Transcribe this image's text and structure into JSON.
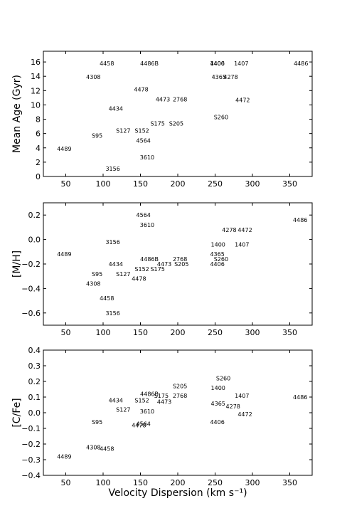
{
  "figure": {
    "xlabel": "Velocity Dispersion (km s⁻¹)"
  },
  "chart_data": [
    {
      "type": "scatter",
      "ylabel": "Mean Age (Gyr)",
      "xlim": [
        20,
        380
      ],
      "ylim": [
        0,
        17.5
      ],
      "xticks": [
        "50",
        "100",
        "150",
        "200",
        "250",
        "300",
        "350"
      ],
      "xtick_values": [
        50,
        100,
        150,
        200,
        250,
        300,
        350
      ],
      "yticks": [
        "0",
        "2",
        "4",
        "6",
        "8",
        "10",
        "12",
        "14",
        "16"
      ],
      "ytick_values": [
        0,
        2,
        4,
        6,
        8,
        10,
        12,
        14,
        16
      ],
      "points": [
        {
          "label": "4458",
          "x": 105,
          "y": 15.8
        },
        {
          "label": "4486B",
          "x": 162,
          "y": 15.8
        },
        {
          "label": "1400",
          "x": 253,
          "y": 15.8
        },
        {
          "label": "4406",
          "x": 253,
          "y": 15.8
        },
        {
          "label": "1407",
          "x": 285,
          "y": 15.8
        },
        {
          "label": "4486",
          "x": 365,
          "y": 15.8
        },
        {
          "label": "4308",
          "x": 87,
          "y": 13.9
        },
        {
          "label": "4365",
          "x": 255,
          "y": 13.9
        },
        {
          "label": "4278",
          "x": 271,
          "y": 13.9
        },
        {
          "label": "4478",
          "x": 151,
          "y": 12.2
        },
        {
          "label": "4473",
          "x": 180,
          "y": 10.8
        },
        {
          "label": "2768",
          "x": 203,
          "y": 10.8
        },
        {
          "label": "4472",
          "x": 287,
          "y": 10.7
        },
        {
          "label": "4434",
          "x": 117,
          "y": 9.5
        },
        {
          "label": "S260",
          "x": 258,
          "y": 8.3
        },
        {
          "label": "S175",
          "x": 173,
          "y": 7.4
        },
        {
          "label": "S205",
          "x": 198,
          "y": 7.4
        },
        {
          "label": "S127",
          "x": 127,
          "y": 6.4
        },
        {
          "label": "S152",
          "x": 152,
          "y": 6.4
        },
        {
          "label": "S95",
          "x": 92,
          "y": 5.7
        },
        {
          "label": "4564",
          "x": 154,
          "y": 5.0
        },
        {
          "label": "4489",
          "x": 48,
          "y": 3.9
        },
        {
          "label": "3610",
          "x": 159,
          "y": 2.7
        },
        {
          "label": "3156",
          "x": 113,
          "y": 1.1
        }
      ]
    },
    {
      "type": "scatter",
      "ylabel": "[M/H]",
      "xlim": [
        20,
        380
      ],
      "ylim": [
        -0.7,
        0.3
      ],
      "xticks": [
        "50",
        "100",
        "150",
        "200",
        "250",
        "300",
        "350"
      ],
      "xtick_values": [
        50,
        100,
        150,
        200,
        250,
        300,
        350
      ],
      "yticks": [
        "0.2",
        "0.0",
        "−0.2",
        "−0.4",
        "−0.6"
      ],
      "ytick_values": [
        0.2,
        0.0,
        -0.2,
        -0.4,
        -0.6
      ],
      "points": [
        {
          "label": "4564",
          "x": 154,
          "y": 0.2
        },
        {
          "label": "4486",
          "x": 364,
          "y": 0.16
        },
        {
          "label": "3610",
          "x": 159,
          "y": 0.12
        },
        {
          "label": "4278",
          "x": 269,
          "y": 0.08
        },
        {
          "label": "4472",
          "x": 290,
          "y": 0.08
        },
        {
          "label": "3156",
          "x": 113,
          "y": -0.02
        },
        {
          "label": "1400",
          "x": 254,
          "y": -0.04
        },
        {
          "label": "1407",
          "x": 286,
          "y": -0.04
        },
        {
          "label": "4489",
          "x": 48,
          "y": -0.12
        },
        {
          "label": "4365",
          "x": 253,
          "y": -0.12
        },
        {
          "label": "4486B",
          "x": 162,
          "y": -0.16
        },
        {
          "label": "2768",
          "x": 203,
          "y": -0.16
        },
        {
          "label": "S260",
          "x": 258,
          "y": -0.16
        },
        {
          "label": "4434",
          "x": 117,
          "y": -0.2
        },
        {
          "label": "4473",
          "x": 182,
          "y": -0.2
        },
        {
          "label": "S205",
          "x": 205,
          "y": -0.2
        },
        {
          "label": "4406",
          "x": 253,
          "y": -0.2
        },
        {
          "label": "S152",
          "x": 152,
          "y": -0.24
        },
        {
          "label": "S175",
          "x": 173,
          "y": -0.24
        },
        {
          "label": "S95",
          "x": 92,
          "y": -0.28
        },
        {
          "label": "S127",
          "x": 127,
          "y": -0.28
        },
        {
          "label": "4478",
          "x": 148,
          "y": -0.32
        },
        {
          "label": "4308",
          "x": 87,
          "y": -0.36
        },
        {
          "label": "4458",
          "x": 105,
          "y": -0.48
        },
        {
          "label": "3156",
          "x": 113,
          "y": -0.6
        }
      ]
    },
    {
      "type": "scatter",
      "ylabel": "[C/Fe]",
      "xlim": [
        20,
        380
      ],
      "ylim": [
        -0.4,
        0.4
      ],
      "xticks": [
        "50",
        "100",
        "150",
        "200",
        "250",
        "300",
        "350"
      ],
      "xtick_values": [
        50,
        100,
        150,
        200,
        250,
        300,
        350
      ],
      "yticks": [
        "0.4",
        "0.3",
        "0.2",
        "0.1",
        "0.0",
        "−0.1",
        "−0.2",
        "−0.3",
        "−0.4"
      ],
      "ytick_values": [
        0.4,
        0.3,
        0.2,
        0.1,
        0.0,
        -0.1,
        -0.2,
        -0.3,
        -0.4
      ],
      "points": [
        {
          "label": "S260",
          "x": 261,
          "y": 0.22
        },
        {
          "label": "S205",
          "x": 203,
          "y": 0.17
        },
        {
          "label": "1400",
          "x": 254,
          "y": 0.16
        },
        {
          "label": "4486B",
          "x": 162,
          "y": 0.12
        },
        {
          "label": "S175",
          "x": 178,
          "y": 0.11
        },
        {
          "label": "2768",
          "x": 203,
          "y": 0.11
        },
        {
          "label": "1407",
          "x": 286,
          "y": 0.11
        },
        {
          "label": "4486",
          "x": 364,
          "y": 0.1
        },
        {
          "label": "4434",
          "x": 117,
          "y": 0.08
        },
        {
          "label": "S152",
          "x": 152,
          "y": 0.08
        },
        {
          "label": "4473",
          "x": 182,
          "y": 0.07
        },
        {
          "label": "4365",
          "x": 254,
          "y": 0.06
        },
        {
          "label": "4278",
          "x": 274,
          "y": 0.04
        },
        {
          "label": "S127",
          "x": 127,
          "y": 0.02
        },
        {
          "label": "3610",
          "x": 159,
          "y": 0.01
        },
        {
          "label": "4472",
          "x": 290,
          "y": -0.01
        },
        {
          "label": "S95",
          "x": 92,
          "y": -0.06
        },
        {
          "label": "4406",
          "x": 253,
          "y": -0.06
        },
        {
          "label": "4564",
          "x": 154,
          "y": -0.07
        },
        {
          "label": "4478",
          "x": 148,
          "y": -0.08
        },
        {
          "label": "4308",
          "x": 87,
          "y": -0.22
        },
        {
          "label": "4458",
          "x": 105,
          "y": -0.23
        },
        {
          "label": "4489",
          "x": 48,
          "y": -0.28
        }
      ]
    }
  ]
}
